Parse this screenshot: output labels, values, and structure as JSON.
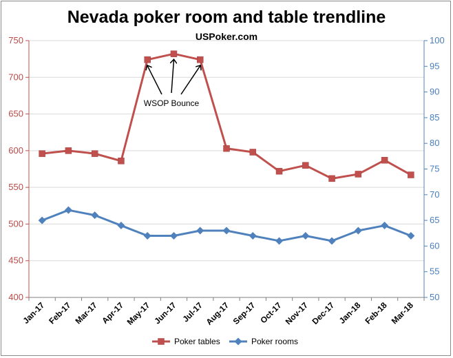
{
  "chart_data": {
    "type": "line",
    "title": "Nevada poker room and table trendline",
    "subtitle": "USPoker.com",
    "categories": [
      "Jan-17",
      "Feb-17",
      "Mar-17",
      "Apr-17",
      "May-17",
      "Jun-17",
      "Jul-17",
      "Aug-17",
      "Sep-17",
      "Oct-17",
      "Nov-17",
      "Dec-17",
      "Jan-18",
      "Feb-18",
      "Mar-18"
    ],
    "series": [
      {
        "name": "Poker tables",
        "axis": "left",
        "color": "#c0504d",
        "marker": "square",
        "values": [
          596,
          600,
          596,
          586,
          724,
          732,
          724,
          603,
          598,
          572,
          580,
          562,
          568,
          587,
          567
        ]
      },
      {
        "name": "Poker rooms",
        "axis": "right",
        "color": "#4f81bd",
        "marker": "diamond",
        "values": [
          65,
          67,
          66,
          64,
          62,
          62,
          63,
          63,
          62,
          61,
          62,
          61,
          63,
          64,
          62
        ]
      }
    ],
    "y_left": {
      "min": 400,
      "max": 750,
      "step": 50,
      "color": "#c0504d"
    },
    "y_right": {
      "min": 50,
      "max": 100,
      "step": 5,
      "color": "#4f81bd"
    },
    "annotation": {
      "text": "WSOP Bounce",
      "targets": [
        "May-17",
        "Jun-17",
        "Jul-17"
      ]
    },
    "legend": {
      "position": "bottom",
      "entries": [
        "Poker tables",
        "Poker rooms"
      ]
    }
  }
}
